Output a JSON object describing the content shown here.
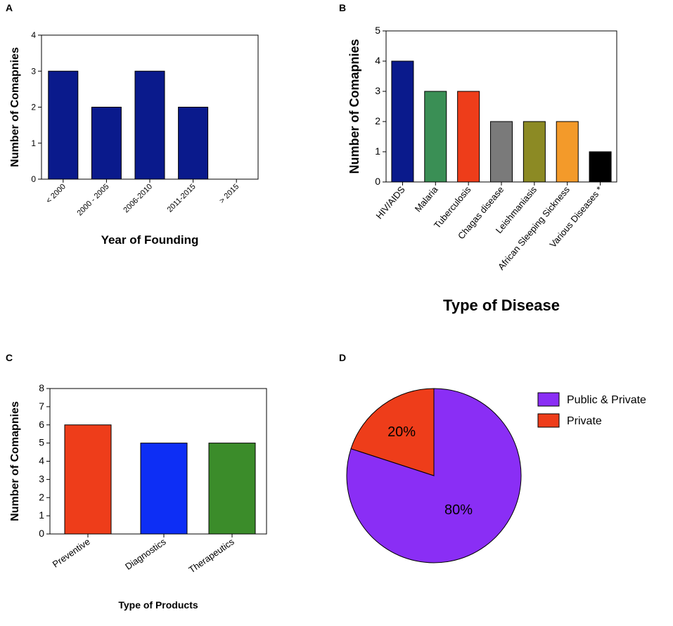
{
  "chart_data": [
    {
      "panel": "A",
      "type": "bar",
      "categories": [
        "< 2000",
        "2000 - 2005",
        "2006-2010",
        "2011-2015",
        "> 2015"
      ],
      "values": [
        3,
        2,
        3,
        2,
        0
      ],
      "colors": [
        "#0a1a8c",
        "#0a1a8c",
        "#0a1a8c",
        "#0a1a8c",
        "#0a1a8c"
      ],
      "xlabel": "Year of Founding",
      "ylabel": "Number of Comapnies",
      "ylim": [
        0,
        4
      ],
      "yticks": [
        0,
        1,
        2,
        3,
        4
      ]
    },
    {
      "panel": "B",
      "type": "bar",
      "categories": [
        "HIV/AIDS",
        "Malaria",
        "Tuberculosis",
        "Chagas disease",
        "Leishmaniasis",
        "African Sleeping Sickness",
        "Various Diseases *"
      ],
      "values": [
        4,
        3,
        3,
        2,
        2,
        2,
        1
      ],
      "colors": [
        "#0a1a8c",
        "#3a8f55",
        "#ee3d1a",
        "#7a7a7a",
        "#8c8a24",
        "#f39a2a",
        "#000000"
      ],
      "xlabel": "Type of Disease",
      "ylabel": "Number of Comapnies",
      "ylim": [
        0,
        5
      ],
      "yticks": [
        0,
        1,
        2,
        3,
        4,
        5
      ]
    },
    {
      "panel": "C",
      "type": "bar",
      "categories": [
        "Preventive",
        "Diagnostics",
        "Therapeutics"
      ],
      "values": [
        6,
        5,
        5
      ],
      "colors": [
        "#ee3d1a",
        "#0d2ef5",
        "#3b8c2a"
      ],
      "xlabel": "Type of Products",
      "ylabel": "Number of Comapnies",
      "ylim": [
        0,
        8
      ],
      "yticks": [
        0,
        1,
        2,
        3,
        4,
        5,
        6,
        7,
        8
      ]
    },
    {
      "panel": "D",
      "type": "pie",
      "slices": [
        {
          "label": "Public & Private",
          "value": 80,
          "text": "80%",
          "color": "#8a2ef5"
        },
        {
          "label": "Private",
          "value": 20,
          "text": "20%",
          "color": "#ee3d1a"
        }
      ]
    }
  ]
}
